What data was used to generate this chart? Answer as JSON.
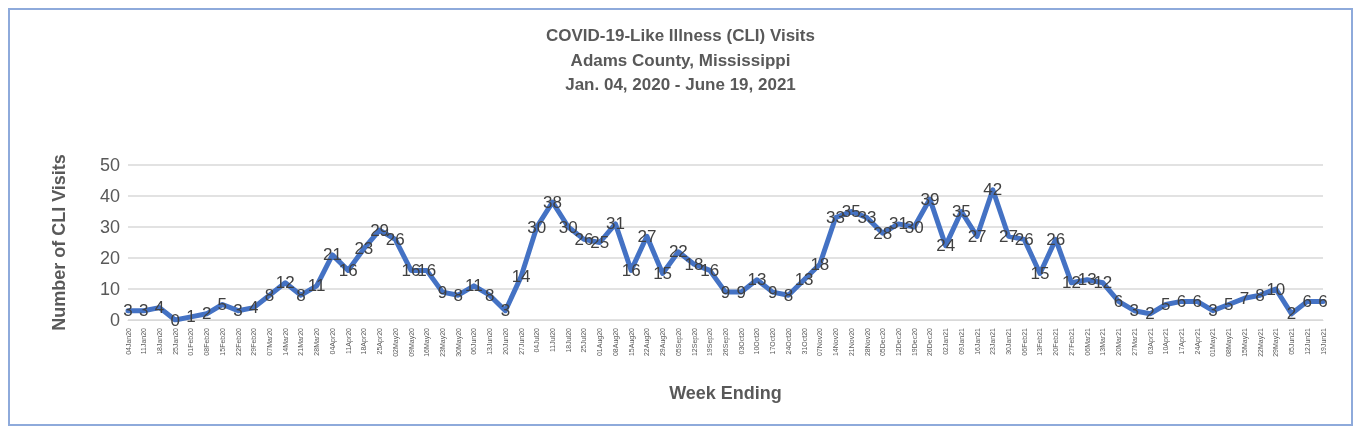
{
  "chart_data": {
    "type": "line",
    "title": "COVID-19-Like Illness (CLI) Visits",
    "subtitle": "Adams County, Mississippi\nJan. 04, 2020 - June 19, 2021",
    "xlabel": "Week Ending",
    "ylabel": "Number of CLI Visits",
    "categories": [
      "04Jan20",
      "11Jan20",
      "18Jan20",
      "25Jan20",
      "01Feb20",
      "08Feb20",
      "15Feb20",
      "22Feb20",
      "29Feb20",
      "07Mar20",
      "14Mar20",
      "21Mar20",
      "28Mar20",
      "04Apr20",
      "11Apr20",
      "18Apr20",
      "25Apr20",
      "02May20",
      "09May20",
      "16May20",
      "23May20",
      "30May20",
      "06Jun20",
      "13Jun20",
      "20Jun20",
      "27Jun20",
      "04Jul20",
      "11Jul20",
      "18Jul20",
      "25Jul20",
      "01Aug20",
      "08Aug20",
      "15Aug20",
      "22Aug20",
      "29Aug20",
      "05Sep20",
      "12Sep20",
      "19Sep20",
      "26Sep20",
      "03Oct20",
      "10Oct20",
      "17Oct20",
      "24Oct20",
      "31Oct20",
      "07Nov20",
      "14Nov20",
      "21Nov20",
      "28Nov20",
      "05Dec20",
      "12Dec20",
      "19Dec20",
      "26Dec20",
      "02Jan21",
      "09Jan21",
      "16Jan21",
      "23Jan21",
      "30Jan21",
      "06Feb21",
      "13Feb21",
      "20Feb21",
      "27Feb21",
      "06Mar21",
      "13Mar21",
      "20Mar21",
      "27Mar21",
      "03Apr21",
      "10Apr21",
      "17Apr21",
      "24Apr21",
      "01May21",
      "08May21",
      "15May21",
      "22May21",
      "29May21",
      "05Jun21",
      "12Jun21",
      "19Jun21"
    ],
    "series": [
      {
        "color": "#4472c4",
        "values": [
          3,
          3,
          4,
          0,
          1,
          2,
          5,
          3,
          4,
          8,
          12,
          8,
          11,
          21,
          16,
          23,
          29,
          26,
          16,
          16,
          9,
          8,
          11,
          8,
          3,
          14,
          30,
          38,
          30,
          26,
          25,
          31,
          16,
          27,
          15,
          22,
          18,
          16,
          9,
          9,
          13,
          9,
          8,
          13,
          18,
          33,
          35,
          33,
          28,
          31,
          30,
          39,
          24,
          35,
          27,
          42,
          27,
          26,
          15,
          26,
          12,
          13,
          12,
          6,
          3,
          2,
          5,
          6,
          6,
          3,
          5,
          7,
          8,
          10,
          2,
          6,
          6
        ]
      }
    ],
    "ylim": [
      0,
      50
    ],
    "yticks": [
      0,
      10,
      20,
      30,
      40,
      50
    ],
    "grid": "y",
    "data_labels": true,
    "marker": "none",
    "line_style": "solid"
  }
}
